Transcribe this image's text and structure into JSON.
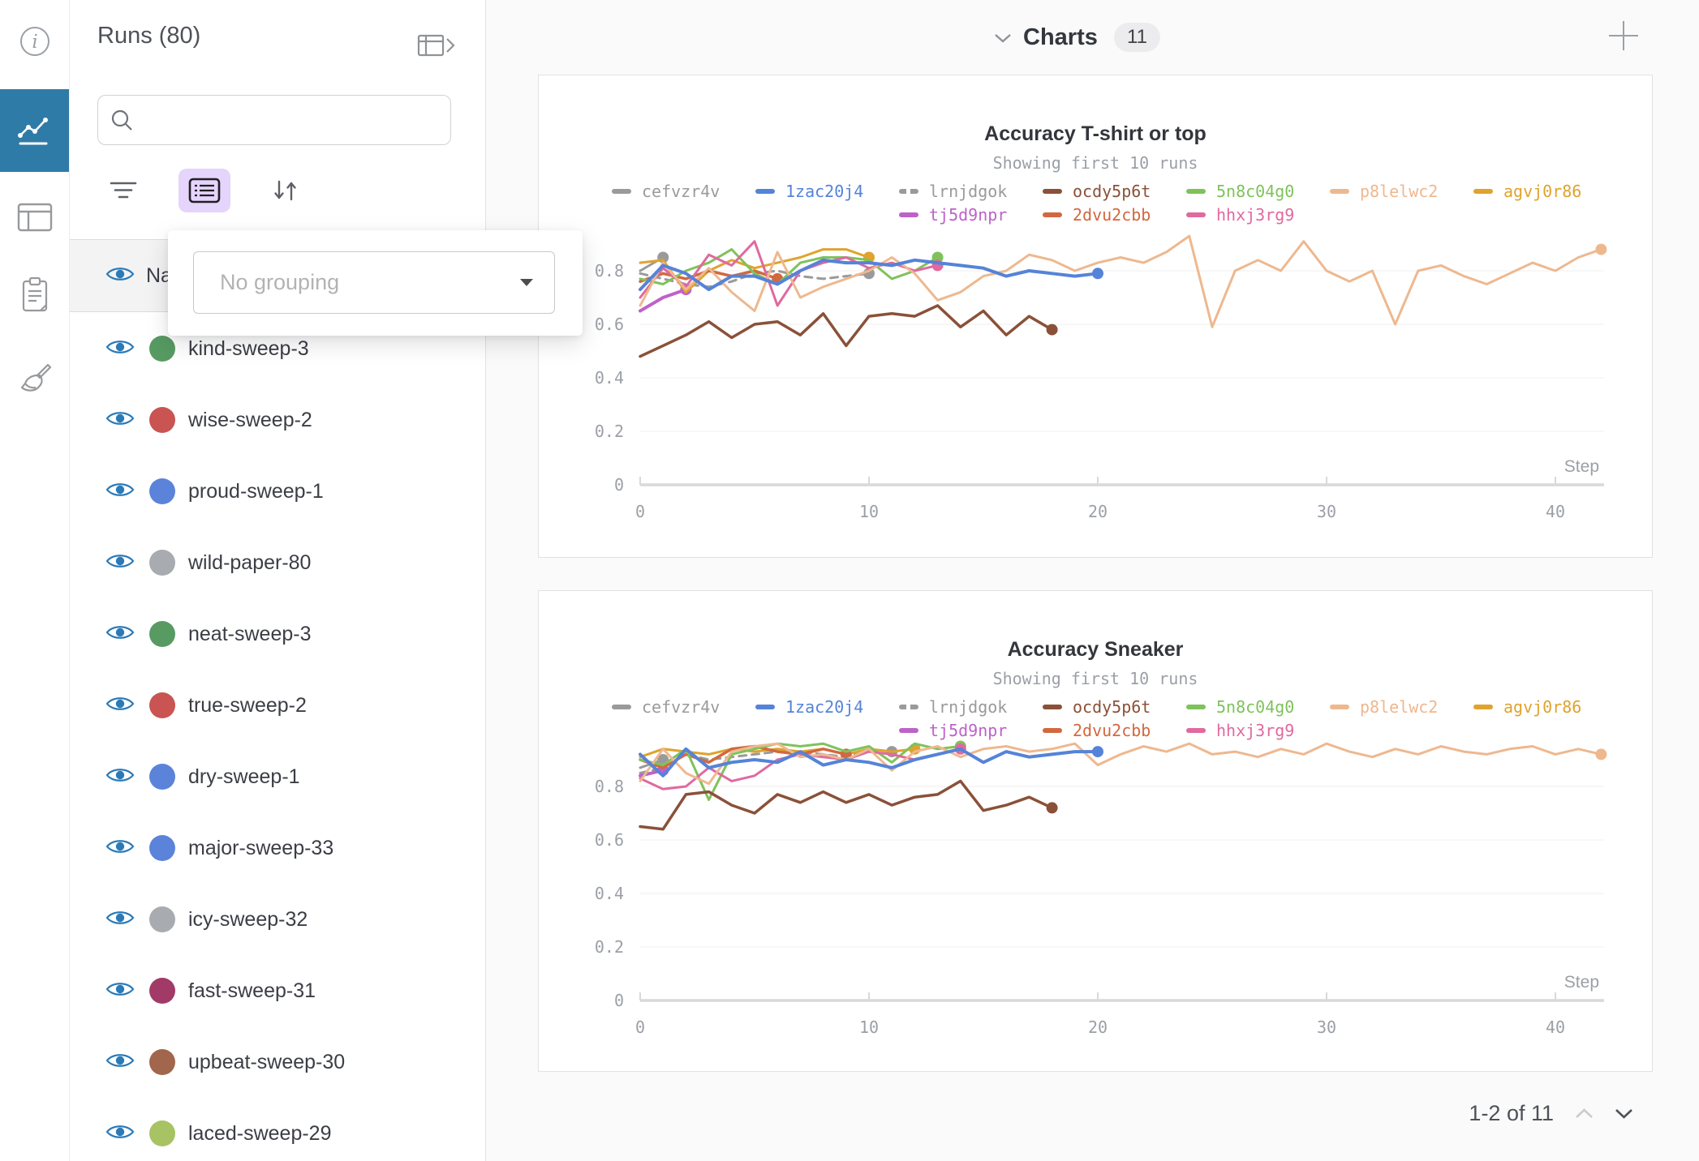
{
  "sidebar": {
    "icons": [
      {
        "name": "info"
      },
      {
        "name": "line-chart",
        "active": true
      },
      {
        "name": "table"
      },
      {
        "name": "clipboard"
      },
      {
        "name": "broom"
      }
    ],
    "active_color": "#2f7ba8"
  },
  "runs_panel": {
    "title": "Runs (80)",
    "search": {
      "placeholder": ""
    },
    "header_row": {
      "label": "Na"
    },
    "eye_color": "#2b7ab8",
    "runs": [
      {
        "name": "kind-sweep-3",
        "color": "#579a62"
      },
      {
        "name": "wise-sweep-2",
        "color": "#c95452"
      },
      {
        "name": "proud-sweep-1",
        "color": "#5b83da"
      },
      {
        "name": "wild-paper-80",
        "color": "#a8abb0"
      },
      {
        "name": "neat-sweep-3",
        "color": "#579a62"
      },
      {
        "name": "true-sweep-2",
        "color": "#c95452"
      },
      {
        "name": "dry-sweep-1",
        "color": "#5b83da"
      },
      {
        "name": "major-sweep-33",
        "color": "#5b83da"
      },
      {
        "name": "icy-sweep-32",
        "color": "#a8abb0"
      },
      {
        "name": "fast-sweep-31",
        "color": "#a23a67"
      },
      {
        "name": "upbeat-sweep-30",
        "color": "#a1664b"
      },
      {
        "name": "laced-sweep-29",
        "color": "#a7c363"
      }
    ]
  },
  "grouping_popup": {
    "value": "No grouping"
  },
  "main": {
    "header": {
      "label": "Charts",
      "count": "11"
    },
    "pagination": {
      "label": "1-2 of 11"
    }
  },
  "chart_data": [
    {
      "type": "line",
      "title": "Accuracy T-shirt or top",
      "subtitle": "Showing first 10 runs",
      "xlabel": "Step",
      "ylim": [
        0,
        1.0
      ],
      "xlim": [
        0,
        42
      ],
      "yticks": [
        0,
        0.2,
        0.4,
        0.6,
        0.8
      ],
      "xticks": [
        0,
        10,
        20,
        30,
        40
      ],
      "grid": true,
      "legend_position": "top",
      "series": [
        {
          "name": "cefvzr4v",
          "color": "#9a9a9a",
          "z": 1,
          "values": [
            0.8,
            0.85
          ]
        },
        {
          "name": "1zac20j4",
          "color": "#5583d8",
          "z": 10,
          "width": 4,
          "values": [
            0.73,
            0.82,
            0.79,
            0.73,
            0.78,
            0.78,
            0.75,
            0.8,
            0.84,
            0.83,
            0.83,
            0.82,
            0.84,
            0.83,
            0.82,
            0.81,
            0.78,
            0.8,
            0.79,
            0.78,
            0.79
          ]
        },
        {
          "name": "lrnjdgok",
          "color": "#9a9a9a",
          "dash": true,
          "z": 2,
          "values": [
            0.79,
            0.77,
            0.75,
            0.74,
            0.76,
            0.79,
            0.8,
            0.78,
            0.77,
            0.78,
            0.79
          ]
        },
        {
          "name": "ocdy5p6t",
          "color": "#8a5138",
          "z": 9,
          "width": 3.5,
          "values": [
            0.48,
            0.52,
            0.56,
            0.61,
            0.55,
            0.6,
            0.61,
            0.56,
            0.64,
            0.52,
            0.63,
            0.64,
            0.63,
            0.67,
            0.59,
            0.65,
            0.56,
            0.63,
            0.58
          ]
        },
        {
          "name": "5n8c04g0",
          "color": "#7fc25b",
          "z": 6,
          "values": [
            0.77,
            0.75,
            0.8,
            0.83,
            0.88,
            0.79,
            0.75,
            0.83,
            0.85,
            0.85,
            0.84,
            0.77,
            0.8,
            0.85
          ]
        },
        {
          "name": "p8lelwc2",
          "color": "#eeb88f",
          "z": 8,
          "values": [
            0.67,
            0.83,
            0.73,
            0.81,
            0.72,
            0.65,
            0.87,
            0.7,
            0.74,
            0.77,
            0.8,
            0.85,
            0.79,
            0.69,
            0.72,
            0.78,
            0.8,
            0.86,
            0.84,
            0.8,
            0.83,
            0.85,
            0.83,
            0.87,
            0.93,
            0.59,
            0.8,
            0.84,
            0.8,
            0.91,
            0.8,
            0.76,
            0.8,
            0.6,
            0.8,
            0.82,
            0.78,
            0.75,
            0.79,
            0.83,
            0.8,
            0.85,
            0.88
          ]
        },
        {
          "name": "agvj0r86",
          "color": "#dfa32e",
          "z": 4,
          "values": [
            0.83,
            0.84,
            0.72,
            0.8,
            0.84,
            0.81,
            0.83,
            0.85,
            0.88,
            0.88,
            0.85
          ]
        },
        {
          "name": "tj5d9npr",
          "color": "#bd62c9",
          "z": 3,
          "width": 4,
          "values": [
            0.65,
            0.7,
            0.73
          ]
        },
        {
          "name": "2dvu2cbb",
          "color": "#d2683f",
          "z": 5,
          "width": 3.5,
          "values": [
            0.76,
            0.79,
            0.77,
            0.8,
            0.78,
            0.8,
            0.77
          ]
        },
        {
          "name": "hhxj3rg9",
          "color": "#e0699f",
          "z": 7,
          "values": [
            0.7,
            0.81,
            0.74,
            0.86,
            0.82,
            0.91,
            0.67,
            0.8,
            0.83,
            0.85,
            0.81,
            0.83,
            0.8,
            0.82
          ]
        }
      ]
    },
    {
      "type": "line",
      "title": "Accuracy Sneaker",
      "subtitle": "Showing first 10 runs",
      "xlabel": "Step",
      "ylim": [
        0,
        1.0
      ],
      "xlim": [
        0,
        42
      ],
      "yticks": [
        0,
        0.2,
        0.4,
        0.6,
        0.8
      ],
      "xticks": [
        0,
        10,
        20,
        30,
        40
      ],
      "grid": true,
      "legend_position": "top",
      "series": [
        {
          "name": "cefvzr4v",
          "color": "#9a9a9a",
          "z": 1,
          "values": [
            0.87,
            0.9
          ]
        },
        {
          "name": "1zac20j4",
          "color": "#5583d8",
          "z": 10,
          "width": 4,
          "values": [
            0.92,
            0.84,
            0.94,
            0.87,
            0.89,
            0.9,
            0.89,
            0.93,
            0.88,
            0.9,
            0.89,
            0.87,
            0.9,
            0.92,
            0.94,
            0.89,
            0.93,
            0.91,
            0.92,
            0.93,
            0.93
          ]
        },
        {
          "name": "lrnjdgok",
          "color": "#9a9a9a",
          "dash": true,
          "z": 2,
          "values": [
            0.85,
            0.87,
            0.92,
            0.9,
            0.91,
            0.92,
            0.93,
            0.93,
            0.92,
            0.91,
            0.94,
            0.93
          ]
        },
        {
          "name": "ocdy5p6t",
          "color": "#8a5138",
          "z": 9,
          "width": 3.5,
          "values": [
            0.65,
            0.64,
            0.77,
            0.78,
            0.73,
            0.7,
            0.77,
            0.74,
            0.78,
            0.74,
            0.77,
            0.73,
            0.76,
            0.77,
            0.82,
            0.71,
            0.73,
            0.76,
            0.72
          ]
        },
        {
          "name": "5n8c04g0",
          "color": "#7fc25b",
          "z": 6,
          "values": [
            0.9,
            0.88,
            0.94,
            0.75,
            0.92,
            0.94,
            0.96,
            0.95,
            0.96,
            0.93,
            0.95,
            0.89,
            0.96,
            0.94,
            0.95
          ]
        },
        {
          "name": "p8lelwc2",
          "color": "#eeb88f",
          "z": 8,
          "values": [
            0.82,
            0.94,
            0.85,
            0.81,
            0.93,
            0.95,
            0.96,
            0.91,
            0.92,
            0.9,
            0.94,
            0.86,
            0.93,
            0.95,
            0.91,
            0.94,
            0.95,
            0.93,
            0.94,
            0.96,
            0.88,
            0.92,
            0.95,
            0.93,
            0.96,
            0.92,
            0.93,
            0.91,
            0.94,
            0.92,
            0.96,
            0.93,
            0.91,
            0.94,
            0.92,
            0.95,
            0.93,
            0.92,
            0.94,
            0.95,
            0.92,
            0.94,
            0.92
          ]
        },
        {
          "name": "agvj0r86",
          "color": "#dfa32e",
          "z": 4,
          "values": [
            0.91,
            0.94,
            0.93,
            0.92,
            0.94,
            0.93,
            0.94,
            0.93,
            0.94,
            0.92,
            0.94,
            0.93,
            0.94
          ]
        },
        {
          "name": "tj5d9npr",
          "color": "#bd62c9",
          "z": 3,
          "width": 4,
          "values": [
            0.84,
            0.86
          ]
        },
        {
          "name": "2dvu2cbb",
          "color": "#d2683f",
          "z": 5,
          "width": 3.5,
          "values": [
            0.9,
            0.87,
            0.92,
            0.89,
            0.94,
            0.95,
            0.93,
            0.92,
            0.94,
            0.92
          ]
        },
        {
          "name": "hhxj3rg9",
          "color": "#e0699f",
          "z": 7,
          "values": [
            0.83,
            0.79,
            0.8,
            0.87,
            0.82,
            0.84,
            0.9,
            0.92,
            0.91,
            0.9,
            0.93,
            0.92,
            0.9,
            0.92,
            0.94
          ]
        }
      ]
    }
  ]
}
